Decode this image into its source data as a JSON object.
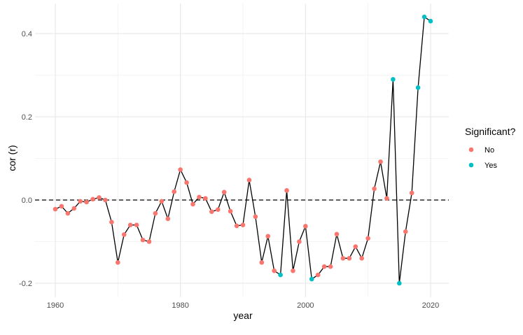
{
  "chart_data": {
    "type": "line",
    "title": "",
    "xlabel": "year",
    "ylabel": "cor (r)",
    "xlim": [
      1957,
      2023
    ],
    "ylim": [
      -0.21,
      0.47
    ],
    "x_ticks": [
      1960,
      1980,
      2000,
      2020
    ],
    "x_tick_labels": [
      "1960",
      "1980",
      "2000",
      "2020"
    ],
    "y_ticks": [
      -0.2,
      0.0,
      0.2,
      0.4
    ],
    "y_tick_labels": [
      "-0.2",
      "0.0",
      "0.2",
      "0.4"
    ],
    "reference_line": {
      "y": 0,
      "style": "dashed"
    },
    "grid": true,
    "legend": {
      "title": "Significant?",
      "placement": "right",
      "entries": [
        {
          "label": "No",
          "color": "#F8766D"
        },
        {
          "label": "Yes",
          "color": "#00BFC4"
        }
      ]
    },
    "x": [
      1960,
      1961,
      1962,
      1963,
      1964,
      1965,
      1966,
      1967,
      1968,
      1969,
      1970,
      1971,
      1972,
      1973,
      1974,
      1975,
      1976,
      1977,
      1978,
      1979,
      1980,
      1981,
      1982,
      1983,
      1984,
      1985,
      1986,
      1987,
      1988,
      1989,
      1990,
      1991,
      1992,
      1993,
      1994,
      1995,
      1996,
      1997,
      1998,
      1999,
      2000,
      2001,
      2002,
      2003,
      2004,
      2005,
      2006,
      2007,
      2008,
      2009,
      2010,
      2011,
      2012,
      2013,
      2014,
      2015,
      2016,
      2017,
      2018,
      2019,
      2020
    ],
    "y": [
      -0.022,
      -0.015,
      -0.032,
      -0.02,
      -0.003,
      -0.005,
      0.002,
      0.006,
      0.0,
      -0.053,
      -0.15,
      -0.083,
      -0.06,
      -0.06,
      -0.096,
      -0.1,
      -0.032,
      -0.003,
      -0.045,
      0.02,
      0.073,
      0.042,
      -0.01,
      0.007,
      0.004,
      -0.028,
      -0.023,
      0.019,
      -0.027,
      -0.062,
      -0.06,
      0.048,
      -0.04,
      -0.15,
      -0.087,
      -0.17,
      -0.18,
      0.023,
      -0.17,
      -0.1,
      -0.063,
      -0.19,
      -0.18,
      -0.16,
      -0.16,
      -0.082,
      -0.14,
      -0.14,
      -0.112,
      -0.14,
      -0.092,
      0.027,
      0.092,
      0.004,
      0.29,
      -0.2,
      -0.076,
      0.017,
      0.27,
      0.44,
      0.43
    ],
    "significant": [
      "No",
      "No",
      "No",
      "No",
      "No",
      "No",
      "No",
      "No",
      "No",
      "No",
      "No",
      "No",
      "No",
      "No",
      "No",
      "No",
      "No",
      "No",
      "No",
      "No",
      "No",
      "No",
      "No",
      "No",
      "No",
      "No",
      "No",
      "No",
      "No",
      "No",
      "No",
      "No",
      "No",
      "No",
      "No",
      "No",
      "Yes",
      "No",
      "No",
      "No",
      "No",
      "Yes",
      "No",
      "No",
      "No",
      "No",
      "No",
      "No",
      "No",
      "No",
      "No",
      "No",
      "No",
      "No",
      "Yes",
      "Yes",
      "No",
      "No",
      "Yes",
      "Yes",
      "Yes"
    ]
  }
}
